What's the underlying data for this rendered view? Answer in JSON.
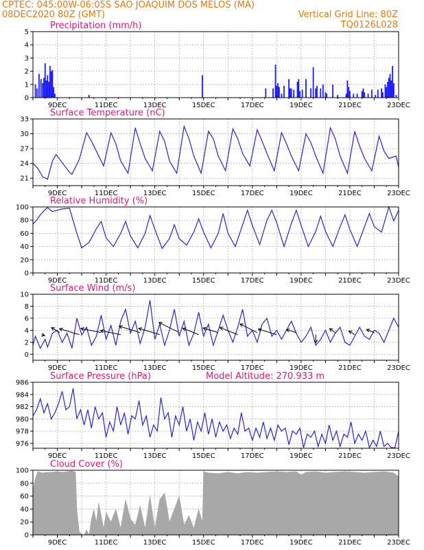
{
  "header": {
    "line1": "CPTEC:   045:00W-06:05S  SAO JOAQUIM DOS MELOS (MA)",
    "line2": "08DEC2020 80Z (GMT)",
    "grid_note": "Vertical Grid Line: 80Z",
    "code": "TQ0126L028"
  },
  "colors": {
    "header": "#e8780a",
    "title": "#e0167a",
    "series": "#2323d8",
    "bars": "#1a1aff",
    "cloud": "#a8a8a8"
  },
  "x_axis": {
    "labels": [
      "9DEC",
      "11DEC",
      "13DEC",
      "15DEC",
      "17DEC",
      "19DEC",
      "21DEC",
      "23DEC"
    ],
    "label_days": [
      9,
      11,
      13,
      15,
      17,
      19,
      21,
      23
    ],
    "start_day": 8.0,
    "end_day": 23.0
  },
  "chart_data": [
    {
      "type": "bar",
      "title": "Precipitation (mm/h)",
      "ylim": [
        0,
        5
      ],
      "yticks": [
        0,
        1,
        2,
        3,
        4,
        5
      ],
      "x": [
        8.1,
        8.17,
        8.25,
        8.33,
        8.4,
        8.45,
        8.5,
        8.55,
        8.6,
        8.65,
        8.7,
        8.75,
        8.8,
        8.85,
        8.9,
        10.3,
        14.95,
        17.55,
        17.85,
        17.95,
        18.0,
        18.05,
        18.1,
        18.2,
        18.3,
        18.5,
        18.55,
        18.6,
        18.7,
        18.85,
        18.9,
        18.95,
        19.05,
        19.2,
        19.4,
        19.5,
        19.6,
        19.65,
        19.8,
        19.9,
        20.0,
        20.05,
        20.3,
        20.5,
        20.85,
        20.9,
        20.95,
        21.0,
        21.15,
        21.3,
        21.5,
        21.55,
        21.6,
        21.75,
        21.9,
        22.05,
        22.15,
        22.3,
        22.35,
        22.45,
        22.5,
        22.55,
        22.6,
        22.65,
        22.7,
        22.75,
        22.8,
        22.9
      ],
      "values": [
        1.0,
        0.7,
        1.8,
        1.4,
        1.1,
        1.5,
        2.6,
        1.3,
        1.7,
        1.2,
        2.4,
        2.0,
        2.1,
        0.8,
        0.3,
        0.2,
        1.7,
        0.7,
        0.7,
        2.5,
        0.9,
        1.1,
        0.8,
        0.3,
        0.9,
        1.4,
        0.7,
        0.7,
        0.6,
        1.2,
        1.4,
        0.5,
        0.6,
        1.4,
        0.7,
        2.3,
        0.7,
        0.9,
        0.7,
        1.0,
        0.4,
        0.3,
        1.0,
        0.2,
        0.3,
        1.3,
        0.8,
        0.5,
        0.3,
        0.3,
        0.5,
        0.7,
        0.4,
        0.3,
        0.6,
        0.2,
        0.6,
        0.7,
        0.4,
        1.0,
        0.8,
        1.2,
        1.5,
        1.8,
        1.3,
        2.4,
        1.1,
        0.2
      ]
    },
    {
      "type": "line",
      "title": "Surface Temperature (nC)",
      "ylim": [
        19.5,
        33
      ],
      "yticks": [
        21,
        24,
        27,
        30,
        33
      ],
      "x": [
        8.0,
        8.2,
        8.4,
        8.6,
        8.8,
        8.95,
        9.1,
        9.3,
        9.5,
        9.6,
        9.9,
        10.2,
        10.4,
        10.6,
        10.9,
        11.2,
        11.4,
        11.6,
        11.9,
        12.2,
        12.4,
        12.6,
        12.9,
        13.2,
        13.4,
        13.6,
        13.9,
        14.2,
        14.4,
        14.6,
        14.9,
        15.2,
        15.4,
        15.6,
        15.9,
        16.2,
        16.4,
        16.6,
        16.9,
        17.2,
        17.4,
        17.6,
        17.9,
        18.2,
        18.4,
        18.6,
        18.9,
        19.2,
        19.4,
        19.6,
        19.9,
        20.2,
        20.4,
        20.6,
        20.9,
        21.2,
        21.4,
        21.6,
        21.9,
        22.2,
        22.4,
        22.6,
        22.9,
        23.0
      ],
      "values": [
        24.0,
        23.0,
        21.3,
        20.8,
        24.5,
        25.8,
        24.8,
        23.5,
        22.2,
        21.8,
        24.8,
        30.2,
        28.5,
        26.5,
        23.5,
        30.2,
        28.0,
        24.5,
        22.0,
        31.2,
        28.0,
        25.0,
        22.5,
        30.5,
        28.5,
        24.5,
        22.0,
        31.5,
        29.0,
        25.5,
        22.0,
        30.5,
        29.0,
        25.5,
        22.5,
        31.0,
        29.0,
        26.0,
        23.5,
        30.8,
        28.5,
        26.0,
        22.5,
        30.2,
        28.0,
        25.5,
        22.5,
        30.0,
        28.2,
        25.5,
        22.0,
        31.2,
        29.0,
        25.5,
        22.0,
        30.5,
        27.5,
        25.0,
        22.5,
        29.5,
        26.5,
        25.0,
        25.5,
        23.2
      ]
    },
    {
      "type": "line",
      "title": "Relative Humidity (%)",
      "ylim": [
        0,
        100
      ],
      "yticks": [
        0,
        20,
        40,
        60,
        80,
        100
      ],
      "x": [
        8.0,
        8.15,
        8.3,
        8.5,
        8.6,
        8.8,
        9.0,
        9.2,
        9.5,
        9.8,
        10.0,
        10.3,
        10.6,
        10.8,
        11.0,
        11.3,
        11.6,
        11.8,
        12.0,
        12.3,
        12.6,
        12.8,
        13.0,
        13.3,
        13.6,
        13.8,
        14.0,
        14.3,
        14.6,
        14.8,
        15.0,
        15.3,
        15.6,
        15.8,
        16.0,
        16.3,
        16.6,
        16.8,
        17.0,
        17.3,
        17.6,
        17.8,
        18.0,
        18.3,
        18.6,
        18.8,
        19.0,
        19.3,
        19.6,
        19.8,
        20.0,
        20.3,
        20.6,
        20.8,
        21.0,
        21.3,
        21.6,
        21.8,
        22.0,
        22.3,
        22.6,
        22.8,
        23.0
      ],
      "values": [
        74,
        80,
        88,
        96,
        99,
        93,
        95,
        97,
        98,
        60,
        38,
        46,
        67,
        78,
        53,
        40,
        60,
        78,
        56,
        38,
        60,
        87,
        66,
        37,
        52,
        73,
        52,
        42,
        62,
        82,
        62,
        38,
        60,
        90,
        60,
        40,
        73,
        95,
        72,
        43,
        80,
        95,
        76,
        40,
        75,
        95,
        72,
        40,
        63,
        86,
        63,
        40,
        70,
        88,
        66,
        40,
        70,
        90,
        70,
        62,
        100,
        79,
        95
      ]
    },
    {
      "type": "line",
      "title": "Surface Wind (m/s)",
      "ylim": [
        -1,
        10
      ],
      "yticks": [
        0,
        2,
        4,
        6,
        8,
        10
      ],
      "x": [
        8.0,
        8.1,
        8.3,
        8.5,
        8.6,
        8.8,
        9.0,
        9.2,
        9.4,
        9.6,
        9.8,
        10.0,
        10.2,
        10.4,
        10.6,
        10.8,
        11.0,
        11.2,
        11.4,
        11.6,
        11.8,
        12.0,
        12.2,
        12.4,
        12.6,
        12.8,
        13.0,
        13.2,
        13.4,
        13.6,
        13.8,
        14.0,
        14.2,
        14.4,
        14.6,
        14.8,
        15.0,
        15.2,
        15.4,
        15.6,
        15.8,
        16.0,
        16.2,
        16.4,
        16.6,
        16.8,
        17.0,
        17.2,
        17.4,
        17.6,
        17.8,
        18.0,
        18.2,
        18.4,
        18.6,
        18.8,
        19.0,
        19.2,
        19.4,
        19.6,
        19.8,
        20.0,
        20.2,
        20.4,
        20.6,
        20.8,
        21.0,
        21.2,
        21.4,
        21.6,
        21.8,
        22.0,
        22.2,
        22.4,
        22.6,
        22.8,
        23.0
      ],
      "values": [
        1.5,
        3.0,
        1.0,
        2.5,
        1.2,
        3.5,
        4.0,
        2.0,
        3.5,
        1.0,
        6.0,
        3.2,
        4.5,
        1.5,
        3.0,
        6.5,
        2.5,
        4.8,
        1.5,
        5.5,
        7.5,
        3.5,
        5.5,
        1.8,
        4.5,
        9.0,
        2.5,
        5.0,
        1.5,
        4.0,
        7.5,
        3.0,
        5.5,
        1.5,
        3.5,
        7.0,
        3.0,
        5.0,
        1.5,
        4.0,
        6.5,
        4.0,
        2.0,
        4.5,
        7.5,
        3.0,
        4.0,
        2.0,
        5.0,
        6.0,
        3.0,
        4.0,
        2.5,
        4.0,
        5.5,
        3.5,
        2.0,
        3.0,
        4.5,
        1.5,
        2.5,
        4.0,
        2.0,
        3.5,
        4.5,
        2.0,
        1.5,
        3.0,
        4.5,
        3.0,
        2.5,
        4.0,
        3.5,
        2.0,
        4.0,
        6.0,
        4.5
      ]
    },
    {
      "type": "line",
      "title": "Surface Pressure (hPa)",
      "annotation": "Model Altitude: 270.933 m",
      "ylim": [
        975.2,
        986
      ],
      "yticks": [
        976,
        978,
        980,
        982,
        984,
        986
      ],
      "x": [
        8.0,
        8.15,
        8.3,
        8.45,
        8.6,
        8.75,
        8.9,
        9.05,
        9.2,
        9.35,
        9.5,
        9.65,
        9.8,
        9.95,
        10.1,
        10.25,
        10.4,
        10.55,
        10.7,
        10.85,
        11.0,
        11.15,
        11.3,
        11.45,
        11.6,
        11.75,
        11.9,
        12.05,
        12.2,
        12.35,
        12.5,
        12.65,
        12.8,
        12.95,
        13.1,
        13.25,
        13.4,
        13.55,
        13.7,
        13.85,
        14.0,
        14.15,
        14.3,
        14.45,
        14.6,
        14.75,
        14.9,
        15.05,
        15.2,
        15.35,
        15.5,
        15.65,
        15.8,
        15.95,
        16.1,
        16.25,
        16.4,
        16.55,
        16.7,
        16.85,
        17.0,
        17.15,
        17.3,
        17.45,
        17.6,
        17.75,
        17.9,
        18.05,
        18.2,
        18.35,
        18.5,
        18.65,
        18.8,
        18.95,
        19.1,
        19.25,
        19.4,
        19.55,
        19.7,
        19.85,
        20.0,
        20.15,
        20.3,
        20.45,
        20.6,
        20.75,
        20.9,
        21.05,
        21.2,
        21.35,
        21.5,
        21.65,
        21.8,
        21.95,
        22.1,
        22.25,
        22.4,
        22.55,
        22.7,
        22.85,
        23.0
      ],
      "values": [
        980.5,
        981.5,
        983.3,
        981.0,
        982.5,
        980.0,
        981.0,
        982.5,
        984.5,
        981.5,
        982.0,
        985.0,
        980.0,
        981.5,
        979.0,
        981.5,
        978.5,
        982.0,
        980.0,
        981.0,
        977.0,
        979.5,
        978.0,
        982.0,
        979.0,
        981.0,
        977.5,
        980.5,
        980.0,
        983.0,
        979.0,
        980.5,
        977.0,
        979.0,
        978.0,
        983.5,
        980.0,
        981.0,
        977.0,
        980.5,
        979.0,
        982.0,
        978.0,
        980.0,
        976.5,
        979.5,
        978.0,
        981.0,
        977.5,
        980.0,
        977.0,
        979.5,
        978.0,
        979.0,
        976.8,
        978.5,
        977.5,
        981.0,
        978.0,
        978.5,
        976.5,
        978.5,
        977.0,
        979.5,
        976.8,
        978.5,
        976.5,
        979.0,
        978.0,
        978.5,
        975.8,
        978.0,
        977.5,
        978.5,
        975.3,
        977.5,
        977.0,
        978.0,
        975.5,
        977.5,
        976.0,
        979.0,
        976.5,
        978.0,
        975.5,
        977.5,
        977.0,
        979.5,
        976.0,
        977.5,
        976.5,
        978.0,
        975.3,
        976.5,
        975.5,
        978.0,
        975.5,
        976.0,
        975.3,
        975.3,
        978.0
      ]
    },
    {
      "type": "area",
      "title": "Cloud Cover (%)",
      "ylim": [
        0,
        100
      ],
      "yticks": [
        0,
        20,
        40,
        60,
        80,
        100
      ],
      "x": [
        8.0,
        8.1,
        8.2,
        8.4,
        8.6,
        8.8,
        9.0,
        9.2,
        9.4,
        9.6,
        9.75,
        9.8,
        9.9,
        10.0,
        10.1,
        10.2,
        10.3,
        10.4,
        10.5,
        10.6,
        10.7,
        10.8,
        10.9,
        11.0,
        11.2,
        11.4,
        11.6,
        11.8,
        12.0,
        12.2,
        12.4,
        12.6,
        12.8,
        13.0,
        13.2,
        13.4,
        13.6,
        13.8,
        14.0,
        14.2,
        14.4,
        14.6,
        14.8,
        14.95,
        15.0,
        15.2,
        15.6,
        16.0,
        16.4,
        16.8,
        17.2,
        17.6,
        18.0,
        18.4,
        18.8,
        19.0,
        19.2,
        19.6,
        20.0,
        20.4,
        20.8,
        21.2,
        21.6,
        22.0,
        22.4,
        22.8,
        23.0
      ],
      "values": [
        70,
        88,
        98,
        96,
        97,
        97,
        98,
        97,
        98,
        99,
        97,
        40,
        5,
        2,
        0,
        8,
        0,
        25,
        40,
        20,
        50,
        30,
        10,
        35,
        20,
        40,
        10,
        55,
        25,
        15,
        45,
        10,
        60,
        10,
        55,
        65,
        20,
        40,
        60,
        15,
        30,
        10,
        40,
        20,
        98,
        96,
        95,
        97,
        95,
        97,
        96,
        97,
        98,
        97,
        98,
        93,
        97,
        98,
        96,
        97,
        98,
        97,
        96,
        97,
        98,
        96,
        90
      ]
    },
    {
      "type": "vector",
      "title": "Surface Wind Direction Arrows",
      "x": [
        8.35,
        9.1,
        9.9,
        10.8,
        11.6,
        12.4,
        13.2,
        14.0,
        14.8,
        15.6,
        16.4,
        17.2,
        18.0,
        18.8,
        19.6,
        20.4,
        21.2,
        22.0
      ],
      "u": [
        1,
        -1,
        -1,
        -1,
        -1,
        -1,
        -1,
        -1,
        -1,
        -1,
        -1,
        -1,
        -1,
        -1,
        0,
        -1,
        -1,
        -1
      ],
      "v": [
        -0.3,
        0.6,
        0.3,
        0.2,
        0.2,
        0.3,
        0.3,
        0.5,
        0.4,
        0.3,
        0.4,
        0.5,
        0.3,
        0.3,
        -1,
        0.7,
        0.6,
        0.4
      ],
      "len": [
        5,
        14,
        30,
        30,
        30,
        32,
        32,
        33,
        25,
        23,
        28,
        28,
        28,
        15,
        12,
        10,
        10,
        12
      ]
    }
  ]
}
